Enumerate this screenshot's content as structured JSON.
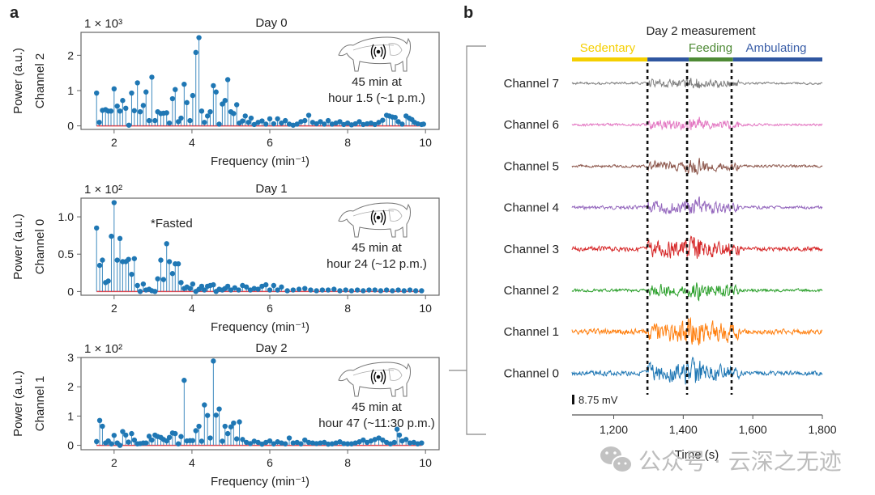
{
  "panel_a_label": "a",
  "panel_b_label": "b",
  "watermark": {
    "icon": "wechat-icon",
    "text": "公众号 · 云深之无迹"
  },
  "chart_data": [
    {
      "type": "scatter",
      "subtype": "stem",
      "panel": "a",
      "title": "Day 0",
      "xlabel": "Frequency (min⁻¹)",
      "ylabel": "Power (a.u.)",
      "ylabel2": "Channel 2",
      "multiplier": "1 × 10³",
      "xlim": [
        1.15,
        10.35
      ],
      "ylim": [
        -0.1,
        2.65
      ],
      "xticks": [
        2,
        4,
        6,
        8,
        10
      ],
      "yticks": [
        0,
        1,
        2
      ],
      "ytick_labels": [
        "0",
        "1",
        "2"
      ],
      "annotation_icon": "pig-sensor-icon",
      "annotation": [
        "45 min at",
        "hour 1.5 (~1 p.m.)"
      ],
      "stem_color": "#1f77b4",
      "baseline_color": "#e8434a",
      "x": [
        1.55,
        1.62,
        1.7,
        1.78,
        1.85,
        1.92,
        2.0,
        2.08,
        2.15,
        2.22,
        2.3,
        2.38,
        2.45,
        2.52,
        2.6,
        2.67,
        2.75,
        2.82,
        2.9,
        2.97,
        3.05,
        3.12,
        3.2,
        3.27,
        3.35,
        3.42,
        3.5,
        3.57,
        3.65,
        3.72,
        3.8,
        3.87,
        3.95,
        4.02,
        4.1,
        4.18,
        4.25,
        4.32,
        4.4,
        4.47,
        4.55,
        4.62,
        4.7,
        4.78,
        4.85,
        4.92,
        5.0,
        5.07,
        5.15,
        5.22,
        5.3,
        5.37,
        5.45,
        5.52,
        5.6,
        5.7,
        5.8,
        5.9,
        6.0,
        6.1,
        6.2,
        6.3,
        6.4,
        6.5,
        6.6,
        6.7,
        6.8,
        6.9,
        7.0,
        7.1,
        7.2,
        7.3,
        7.4,
        7.5,
        7.6,
        7.7,
        7.8,
        7.9,
        8.0,
        8.1,
        8.2,
        8.3,
        8.4,
        8.5,
        8.6,
        8.7,
        8.8,
        8.9,
        9.0,
        9.07,
        9.15,
        9.22,
        9.3,
        9.4,
        9.5,
        9.58,
        9.65,
        9.72,
        9.8,
        9.9,
        9.95
      ],
      "y": [
        0.93,
        0.1,
        0.44,
        0.46,
        0.42,
        0.42,
        1.05,
        0.56,
        0.42,
        0.72,
        0.5,
        0.02,
        0.93,
        0.43,
        1.22,
        0.4,
        0.58,
        0.96,
        0.15,
        1.38,
        0.15,
        0.4,
        0.35,
        0.36,
        0.37,
        0.08,
        0.77,
        1.03,
        0.12,
        0.22,
        1.18,
        0.66,
        0.15,
        0.86,
        2.08,
        2.5,
        0.42,
        0.1,
        0.28,
        0.4,
        1.14,
        0.96,
        0.05,
        0.62,
        0.72,
        1.31,
        0.4,
        0.35,
        0.6,
        0.08,
        0.14,
        0.28,
        0.1,
        0.22,
        0.04,
        0.1,
        0.14,
        0.05,
        0.2,
        0.06,
        0.2,
        0.08,
        0.15,
        0.05,
        0.02,
        0.05,
        0.12,
        0.15,
        0.3,
        0.1,
        0.06,
        0.12,
        0.05,
        0.15,
        0.05,
        0.08,
        0.12,
        0.04,
        0.08,
        0.03,
        0.06,
        0.12,
        0.04,
        0.06,
        0.08,
        0.04,
        0.1,
        0.16,
        0.3,
        0.28,
        0.25,
        0.24,
        0.12,
        0.05,
        0.28,
        0.22,
        0.18,
        0.1,
        0.06,
        0.04,
        0.05
      ]
    },
    {
      "type": "scatter",
      "subtype": "stem",
      "panel": "a",
      "title": "Day 1",
      "xlabel": "Frequency (min⁻¹)",
      "ylabel": "Power (a.u.)",
      "ylabel2": "Channel 0",
      "multiplier": "1 × 10²",
      "xlim": [
        1.15,
        10.35
      ],
      "ylim": [
        -0.05,
        1.25
      ],
      "xticks": [
        2,
        4,
        6,
        8,
        10
      ],
      "yticks": [
        0,
        0.5,
        1.0
      ],
      "ytick_labels": [
        "0",
        "0.5",
        "1.0"
      ],
      "note": "*Fasted",
      "annotation_icon": "pig-sensor-icon",
      "annotation": [
        "45 min at",
        "hour 24 (~12 p.m.)"
      ],
      "stem_color": "#1f77b4",
      "baseline_color": "#e8434a",
      "x": [
        1.55,
        1.63,
        1.7,
        1.78,
        1.85,
        1.93,
        2.0,
        2.08,
        2.15,
        2.22,
        2.3,
        2.37,
        2.45,
        2.52,
        2.6,
        2.67,
        2.75,
        2.82,
        2.9,
        2.97,
        3.05,
        3.12,
        3.2,
        3.27,
        3.35,
        3.42,
        3.5,
        3.57,
        3.65,
        3.72,
        3.8,
        3.87,
        3.95,
        4.02,
        4.1,
        4.18,
        4.25,
        4.32,
        4.4,
        4.47,
        4.55,
        4.62,
        4.7,
        4.78,
        4.85,
        4.92,
        5.0,
        5.1,
        5.2,
        5.3,
        5.4,
        5.5,
        5.6,
        5.7,
        5.8,
        5.9,
        6.0,
        6.1,
        6.2,
        6.3,
        6.45,
        6.6,
        6.75,
        6.9,
        7.05,
        7.2,
        7.35,
        7.5,
        7.65,
        7.8,
        7.95,
        8.1,
        8.25,
        8.4,
        8.55,
        8.7,
        8.85,
        9.0,
        9.15,
        9.3,
        9.45,
        9.6,
        9.75,
        9.9
      ],
      "y": [
        0.85,
        0.35,
        0.42,
        0.12,
        0.14,
        0.74,
        1.19,
        0.42,
        0.71,
        0.4,
        0.4,
        0.43,
        0.23,
        0.44,
        0.08,
        0.0,
        0.1,
        0.02,
        0.03,
        0.01,
        0.0,
        0.17,
        0.42,
        0.16,
        0.64,
        0.4,
        0.24,
        0.37,
        0.37,
        0.12,
        0.04,
        0.06,
        0.04,
        0.1,
        0.0,
        0.03,
        0.07,
        0.02,
        0.07,
        0.08,
        0.09,
        0.0,
        0.03,
        0.02,
        0.04,
        0.07,
        0.02,
        0.05,
        0.02,
        0.08,
        0.06,
        0.02,
        0.04,
        0.03,
        0.07,
        0.09,
        0.02,
        0.08,
        0.02,
        0.06,
        0.01,
        0.02,
        0.03,
        0.04,
        0.02,
        0.01,
        0.02,
        0.02,
        0.03,
        0.01,
        0.02,
        0.01,
        0.02,
        0.01,
        0.02,
        0.02,
        0.01,
        0.02,
        0.01,
        0.02,
        0.01,
        0.02,
        0.01,
        0.01
      ]
    },
    {
      "type": "scatter",
      "subtype": "stem",
      "panel": "a",
      "title": "Day 2",
      "xlabel": "Frequency (min⁻¹)",
      "ylabel": "Power (a.u.)",
      "ylabel2": "Channel 1",
      "multiplier": "1 × 10²",
      "xlim": [
        1.15,
        10.35
      ],
      "ylim": [
        -0.15,
        3.0
      ],
      "xticks": [
        2,
        4,
        6,
        8,
        10
      ],
      "yticks": [
        0,
        1,
        2,
        3
      ],
      "ytick_labels": [
        "0",
        "1",
        "2",
        "3"
      ],
      "annotation_icon": "pig-sensor-icon",
      "annotation": [
        "45 min at",
        "hour 47 (~11:30 p.m.)"
      ],
      "stem_color": "#1f77b4",
      "baseline_color": "#e8434a",
      "x": [
        1.55,
        1.63,
        1.7,
        1.78,
        1.85,
        1.93,
        2.0,
        2.08,
        2.15,
        2.22,
        2.3,
        2.37,
        2.45,
        2.52,
        2.6,
        2.67,
        2.75,
        2.82,
        2.9,
        2.97,
        3.05,
        3.12,
        3.2,
        3.27,
        3.35,
        3.42,
        3.5,
        3.57,
        3.65,
        3.72,
        3.8,
        3.87,
        3.95,
        4.02,
        4.1,
        4.18,
        4.25,
        4.32,
        4.4,
        4.47,
        4.55,
        4.62,
        4.7,
        4.78,
        4.85,
        4.92,
        5.0,
        5.07,
        5.15,
        5.22,
        5.3,
        5.4,
        5.5,
        5.6,
        5.7,
        5.8,
        5.9,
        6.0,
        6.1,
        6.2,
        6.3,
        6.4,
        6.5,
        6.6,
        6.7,
        6.8,
        6.9,
        7.0,
        7.1,
        7.2,
        7.3,
        7.4,
        7.5,
        7.6,
        7.7,
        7.8,
        7.9,
        8.0,
        8.1,
        8.2,
        8.3,
        8.4,
        8.5,
        8.6,
        8.7,
        8.8,
        8.9,
        9.0,
        9.1,
        9.2,
        9.27,
        9.33,
        9.4,
        9.5,
        9.6,
        9.7,
        9.8,
        9.9
      ],
      "y": [
        0.13,
        0.85,
        0.65,
        0.08,
        0.15,
        0.05,
        0.34,
        0.08,
        0.0,
        0.47,
        0.35,
        0.11,
        0.4,
        0.18,
        0.05,
        0.06,
        0.08,
        0.08,
        0.31,
        0.18,
        0.35,
        0.3,
        0.27,
        0.2,
        0.15,
        0.27,
        0.42,
        0.4,
        0.05,
        0.3,
        2.22,
        0.15,
        0.16,
        0.16,
        0.5,
        0.65,
        0.14,
        1.38,
        1.02,
        0.25,
        2.88,
        1.03,
        1.24,
        0.14,
        0.65,
        0.4,
        0.63,
        0.76,
        0.22,
        0.8,
        0.2,
        0.1,
        0.06,
        0.14,
        0.1,
        0.04,
        0.1,
        0.15,
        0.05,
        0.12,
        0.08,
        0.05,
        0.25,
        0.08,
        0.1,
        0.05,
        0.18,
        0.1,
        0.08,
        0.06,
        0.08,
        0.1,
        0.04,
        0.05,
        0.08,
        0.12,
        0.06,
        0.05,
        0.05,
        0.08,
        0.12,
        0.18,
        0.1,
        0.15,
        0.2,
        0.25,
        0.18,
        0.1,
        0.05,
        0.1,
        0.55,
        0.35,
        0.15,
        0.2,
        0.08,
        0.1,
        0.05,
        0.08
      ]
    },
    {
      "type": "line",
      "panel": "b",
      "title": "Day 2 measurement",
      "xlabel": "Time (s)",
      "xlim": [
        1080,
        1800
      ],
      "xticks": [
        1200,
        1400,
        1600,
        1800
      ],
      "xtick_labels": [
        "1,200",
        "1,400",
        "1,600",
        "1,800"
      ],
      "scale_bar": "8.75 mV",
      "phases": [
        {
          "name": "Sedentary",
          "start": 1080,
          "end": 1297,
          "color": "#f5cf00"
        },
        {
          "name": "",
          "start": 1297,
          "end": 1416,
          "color": "#2f56a0"
        },
        {
          "name": "Feeding",
          "start": 1416,
          "end": 1543,
          "color": "#4e8a35"
        },
        {
          "name": "Ambulating",
          "start": 1543,
          "end": 1800,
          "color": "#2f56a0"
        }
      ],
      "phase_labels": [
        {
          "text": "Sedentary",
          "color": "#f5cf00"
        },
        {
          "text": "Feeding",
          "color": "#4e8a35"
        },
        {
          "text": "Ambulating",
          "color": "#3a5ea8"
        }
      ],
      "event_lines": [
        1297,
        1411,
        1539
      ],
      "series": [
        {
          "name": "Channel 7",
          "color": "#7f7f7f",
          "activity": 0.5,
          "seed": 7
        },
        {
          "name": "Channel 6",
          "color": "#e377c2",
          "activity": 0.55,
          "seed": 6
        },
        {
          "name": "Channel 5",
          "color": "#8c564b",
          "activity": 0.6,
          "seed": 5
        },
        {
          "name": "Channel 4",
          "color": "#9467bd",
          "activity": 0.75,
          "seed": 4
        },
        {
          "name": "Channel 3",
          "color": "#d62728",
          "activity": 1.0,
          "seed": 3
        },
        {
          "name": "Channel 2",
          "color": "#2ca02c",
          "activity": 0.7,
          "seed": 2
        },
        {
          "name": "Channel 1",
          "color": "#ff7f0e",
          "activity": 1.2,
          "seed": 1
        },
        {
          "name": "Channel 0",
          "color": "#1f77b4",
          "activity": 1.05,
          "seed": 0
        }
      ]
    }
  ]
}
